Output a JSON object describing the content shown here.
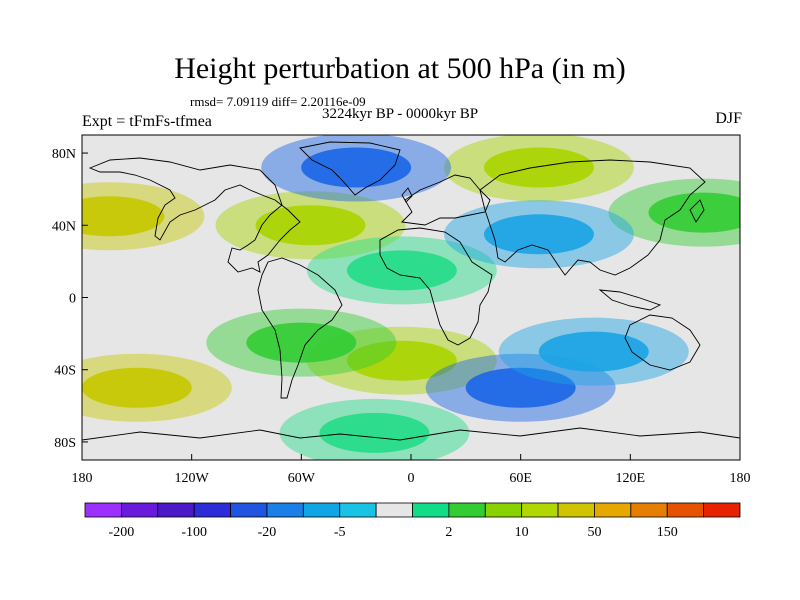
{
  "title": "Height perturbation at 500 hPa (in m)",
  "stats": "rmsd= 7.09119 diff= 2.20116e-09",
  "period": "3224kyr BP - 0000kyr BP",
  "experiment": "Expt = tFmFs-tfmea",
  "season": "DJF",
  "map": {
    "lon_range": [
      -180,
      180
    ],
    "lat_range": [
      -90,
      90
    ],
    "lon_ticks": [
      {
        "value": -180,
        "label": "180"
      },
      {
        "value": -120,
        "label": "120W"
      },
      {
        "value": -60,
        "label": "60W"
      },
      {
        "value": 0,
        "label": "0"
      },
      {
        "value": 60,
        "label": "60E"
      },
      {
        "value": 120,
        "label": "120E"
      },
      {
        "value": 180,
        "label": "180"
      }
    ],
    "lat_ticks": [
      {
        "value": 80,
        "label": "80N"
      },
      {
        "value": 40,
        "label": "40N"
      },
      {
        "value": 0,
        "label": "0"
      },
      {
        "value": -40,
        "label": "40S"
      },
      {
        "value": -80,
        "label": "80S"
      }
    ],
    "background_color": "#e6e6e6",
    "anomaly_fields": [
      {
        "region": "north-pacific-east",
        "lon": -165,
        "lat": 45,
        "level": 50,
        "color": "#c8c800"
      },
      {
        "region": "north-pacific-west",
        "lon": 160,
        "lat": 47,
        "level": 10,
        "color": "#33cc33"
      },
      {
        "region": "north-atlantic",
        "lon": -55,
        "lat": 40,
        "level": 10,
        "color": "#a8d400"
      },
      {
        "region": "africa",
        "lon": -5,
        "lat": 15,
        "level": 2,
        "color": "#22dd88"
      },
      {
        "region": "eurasia-arctic",
        "lon": 70,
        "lat": 72,
        "level": 10,
        "color": "#a8d400"
      },
      {
        "region": "arctic-america",
        "lon": -30,
        "lat": 72,
        "level": -20,
        "color": "#1a66e6"
      },
      {
        "region": "central-asia",
        "lon": 70,
        "lat": 35,
        "level": -5,
        "color": "#1aa3e6"
      },
      {
        "region": "south-atlantic",
        "lon": -5,
        "lat": -35,
        "level": 10,
        "color": "#a8d400"
      },
      {
        "region": "south-america",
        "lon": -60,
        "lat": -25,
        "level": 10,
        "color": "#33cc33"
      },
      {
        "region": "south-pacific-east",
        "lon": -150,
        "lat": -50,
        "level": 50,
        "color": "#c8c800"
      },
      {
        "region": "southern-ocean-indian",
        "lon": 60,
        "lat": -50,
        "level": -20,
        "color": "#1a66e6"
      },
      {
        "region": "south-indian",
        "lon": 100,
        "lat": -30,
        "level": -5,
        "color": "#1aa3e6"
      },
      {
        "region": "antarctic-coast",
        "lon": -20,
        "lat": -75,
        "level": 2,
        "color": "#22dd88"
      }
    ]
  },
  "colorbar": {
    "colors": [
      "#9b30ff",
      "#6a1adb",
      "#4c19c8",
      "#2c2cd9",
      "#1f55e0",
      "#1a7fe6",
      "#10a6e6",
      "#19c3e6",
      "#e6e6e6",
      "#11dd88",
      "#33cc33",
      "#88d200",
      "#b0d800",
      "#d0c400",
      "#e6a800",
      "#e67e00",
      "#e65200",
      "#e62200"
    ],
    "labels": [
      {
        "boundary": 1,
        "text": "-200"
      },
      {
        "boundary": 3,
        "text": "-100"
      },
      {
        "boundary": 5,
        "text": "-20"
      },
      {
        "boundary": 7,
        "text": "-5"
      },
      {
        "boundary": 10,
        "text": "2"
      },
      {
        "boundary": 12,
        "text": "10"
      },
      {
        "boundary": 14,
        "text": "50"
      },
      {
        "boundary": 16,
        "text": "150"
      }
    ]
  }
}
